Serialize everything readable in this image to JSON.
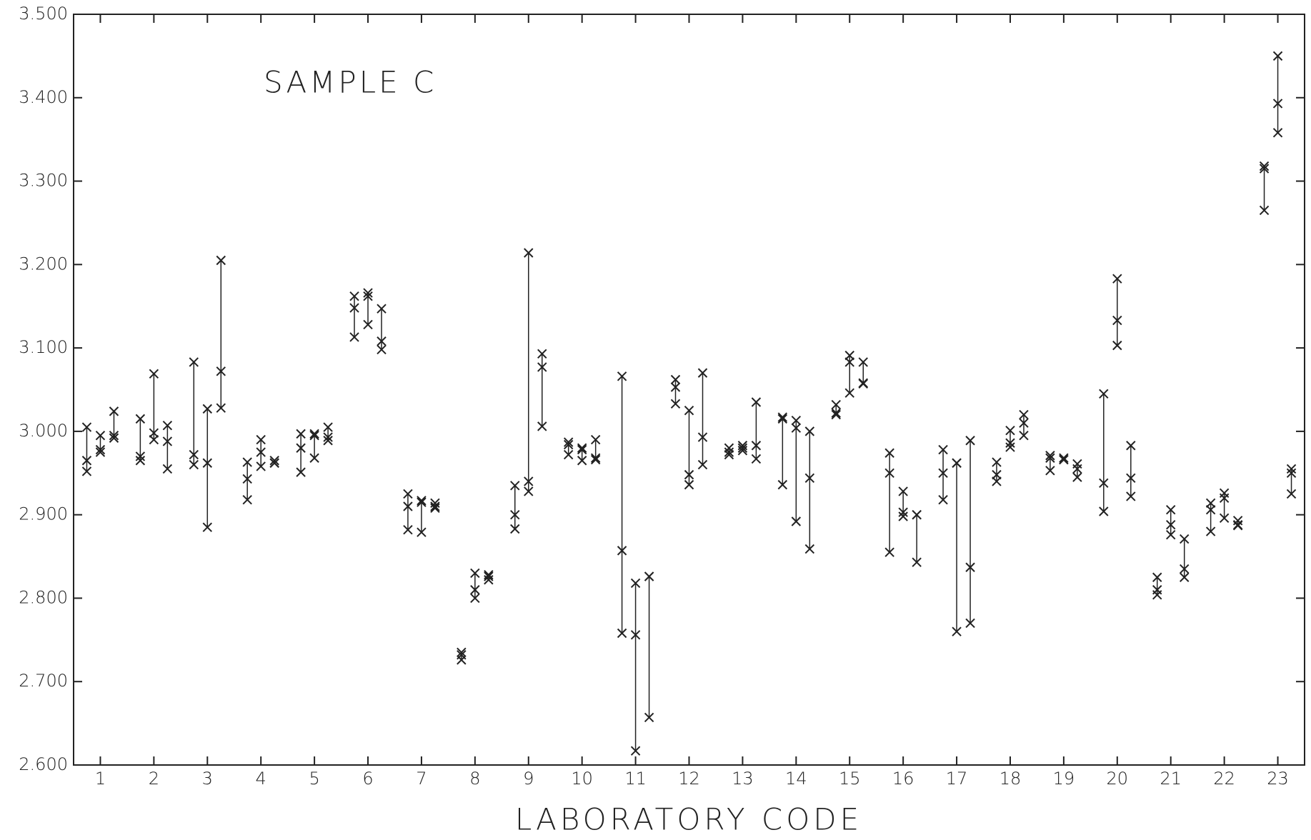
{
  "chart_data": {
    "type": "scatter",
    "title": "SAMPLE C",
    "xlabel": "LABORATORY CODE",
    "categories": [
      "1",
      "2",
      "3",
      "4",
      "5",
      "6",
      "7",
      "8",
      "9",
      "10",
      "11",
      "12",
      "13",
      "14",
      "15",
      "16",
      "17",
      "18",
      "19",
      "20",
      "21",
      "22",
      "23"
    ],
    "color": "#222222",
    "ylim": [
      2.6,
      3.5
    ],
    "yticks": [
      {
        "value": 2.6,
        "label": "2.600"
      },
      {
        "value": 2.7,
        "label": "2.700"
      },
      {
        "value": 2.8,
        "label": "2.800"
      },
      {
        "value": 2.9,
        "label": "2.900"
      },
      {
        "value": 3.0,
        "label": "3.000"
      },
      {
        "value": 3.1,
        "label": "3.100"
      },
      {
        "value": 3.2,
        "label": "3.200"
      },
      {
        "value": 3.3,
        "label": "3.300"
      },
      {
        "value": 3.4,
        "label": "3.400"
      },
      {
        "value": 3.5,
        "label": "3.500"
      }
    ],
    "series": [
      {
        "values": [
          [
            3.005,
            2.965,
            2.952
          ],
          [
            3.015,
            2.97,
            2.965
          ],
          [
            3.083,
            2.972,
            2.96
          ],
          [
            2.963,
            2.943,
            2.918
          ],
          [
            2.997,
            2.98,
            2.951
          ],
          [
            3.162,
            3.148,
            3.113
          ],
          [
            2.925,
            2.91,
            2.882
          ],
          [
            2.735,
            2.732,
            2.726
          ],
          [
            2.935,
            2.9,
            2.883
          ],
          [
            2.987,
            2.984,
            2.972
          ],
          [
            3.066,
            2.857,
            2.758
          ],
          [
            3.062,
            3.053,
            3.033
          ],
          [
            2.98,
            2.975,
            2.972
          ],
          [
            3.017,
            3.015,
            2.936
          ],
          [
            3.032,
            3.022,
            3.02
          ],
          [
            2.974,
            2.95,
            2.855
          ],
          [
            2.978,
            2.95,
            2.918
          ],
          [
            2.963,
            2.948,
            2.94
          ],
          [
            2.971,
            2.968,
            2.953
          ],
          [
            3.045,
            2.938,
            2.904
          ],
          [
            2.825,
            2.81,
            2.804
          ],
          [
            2.914,
            2.906,
            2.88
          ],
          [
            3.318,
            3.315,
            3.265
          ]
        ]
      },
      {
        "values": [
          [
            2.995,
            2.978,
            2.975
          ],
          [
            3.069,
            2.998,
            2.99
          ],
          [
            3.027,
            2.962,
            2.885
          ],
          [
            2.99,
            2.975,
            2.958
          ],
          [
            2.997,
            2.995,
            2.968
          ],
          [
            3.166,
            3.162,
            3.128
          ],
          [
            2.917,
            2.915,
            2.879
          ],
          [
            2.83,
            2.81,
            2.8
          ],
          [
            3.214,
            2.94,
            2.928
          ],
          [
            2.98,
            2.978,
            2.965
          ],
          [
            2.818,
            2.756,
            2.617
          ],
          [
            3.025,
            2.948,
            2.936
          ],
          [
            2.983,
            2.98,
            2.977
          ],
          [
            3.013,
            3.004,
            2.892
          ],
          [
            3.091,
            3.083,
            3.046
          ],
          [
            2.928,
            2.903,
            2.898
          ],
          [
            2.962,
            2.962,
            2.76
          ],
          [
            3.001,
            2.986,
            2.981
          ],
          [
            2.968,
            2.966,
            2.966
          ],
          [
            3.183,
            3.133,
            3.103
          ],
          [
            2.906,
            2.888,
            2.876
          ],
          [
            2.926,
            2.92,
            2.896
          ],
          [
            3.45,
            3.393,
            3.358
          ]
        ]
      },
      {
        "values": [
          [
            3.024,
            2.995,
            2.992
          ],
          [
            3.007,
            2.988,
            2.955
          ],
          [
            3.205,
            3.072,
            3.028
          ],
          [
            2.965,
            2.962,
            2.962
          ],
          [
            3.005,
            2.993,
            2.989
          ],
          [
            3.147,
            3.108,
            3.098
          ],
          [
            2.914,
            2.91,
            2.908
          ],
          [
            2.828,
            2.826,
            2.822
          ],
          [
            3.093,
            3.077,
            3.006
          ],
          [
            2.99,
            2.968,
            2.966
          ],
          [
            2.826,
            2.826,
            2.657
          ],
          [
            3.07,
            2.993,
            2.96
          ],
          [
            3.035,
            2.983,
            2.967
          ],
          [
            3.0,
            2.944,
            2.859
          ],
          [
            3.083,
            3.058,
            3.057
          ],
          [
            2.9,
            2.9,
            2.843
          ],
          [
            2.989,
            2.837,
            2.77
          ],
          [
            3.02,
            3.01,
            2.995
          ],
          [
            2.961,
            2.955,
            2.945
          ],
          [
            2.983,
            2.944,
            2.922
          ],
          [
            2.871,
            2.835,
            2.825
          ],
          [
            2.893,
            2.888,
            2.887
          ],
          [
            2.955,
            2.95,
            2.925
          ]
        ]
      }
    ]
  }
}
